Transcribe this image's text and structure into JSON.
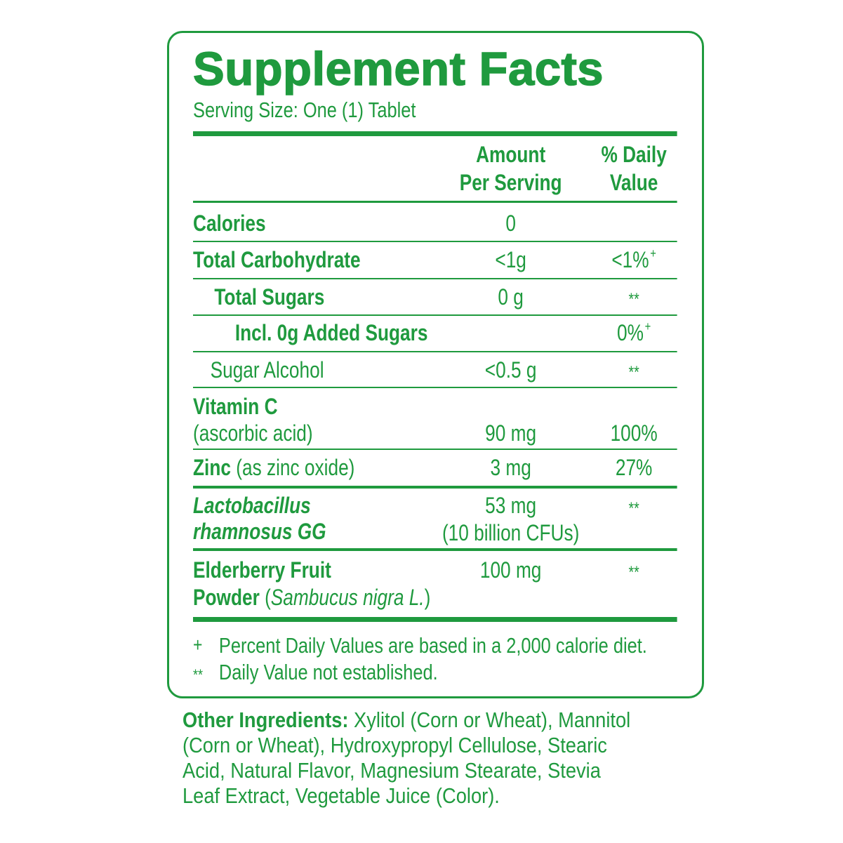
{
  "title": "Supplement Facts",
  "serving_size": "Serving Size: One (1) Tablet",
  "columns": {
    "amount": [
      "Amount",
      "Per Serving"
    ],
    "daily_value": [
      "% Daily",
      "Value"
    ]
  },
  "rows": [
    {
      "name": "Calories",
      "amount": "0"
    },
    {
      "name": "Total Carbohydrate",
      "amount": "<1g",
      "daily_value": "<1%",
      "daily_value_mark": "+"
    },
    {
      "name": "Total Sugars",
      "amount": "0 g",
      "daily_value": "**"
    },
    {
      "name": "Incl. 0g Added Sugars",
      "daily_value": "0%",
      "daily_value_mark": "+"
    },
    {
      "name": "Sugar Alcohol",
      "amount": "<0.5 g",
      "daily_value": "**"
    },
    {
      "name": "Vitamin C",
      "detail": "(ascorbic acid)",
      "amount": "90 mg",
      "daily_value": "100%"
    },
    {
      "name": "Zinc",
      "detail": "(as zinc oxide)",
      "amount": "3 mg",
      "daily_value": "27%"
    },
    {
      "name": [
        "Lactobacillus",
        "rhamnosus GG"
      ],
      "amount": "53 mg",
      "amount_detail": "(10 billion CFUs)",
      "daily_value": "**"
    },
    {
      "name": [
        "Elderberry Fruit",
        "Powder"
      ],
      "detail": [
        "(",
        "Sambucus nigra L.",
        ")"
      ],
      "amount": "100 mg",
      "daily_value": "**"
    }
  ],
  "footnotes": [
    {
      "symbol": "+",
      "text": "Percent Daily Values are based in a 2,000 calorie diet."
    },
    {
      "symbol": "**",
      "text": "Daily Value not established."
    }
  ],
  "other_ingredients": {
    "label": "Other Ingredients:",
    "lines": [
      "Xylitol (Corn or Wheat), Mannitol",
      "(Corn or Wheat), Hydroxypropyl Cellulose, Stearic",
      "Acid, Natural Flavor, Magnesium Stearate, Stevia",
      "Leaf Extract, Vegetable Juice (Color)."
    ]
  }
}
